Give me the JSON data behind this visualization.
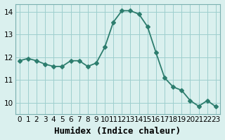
{
  "x": [
    0,
    1,
    2,
    3,
    4,
    5,
    6,
    7,
    8,
    9,
    10,
    11,
    12,
    13,
    14,
    15,
    16,
    17,
    18,
    19,
    20,
    21,
    22,
    23
  ],
  "y": [
    11.85,
    11.95,
    11.85,
    11.7,
    11.6,
    11.6,
    11.85,
    11.85,
    11.6,
    11.75,
    12.45,
    13.55,
    14.05,
    14.05,
    13.9,
    13.35,
    12.2,
    11.1,
    10.7,
    10.55,
    10.1,
    9.85,
    10.1,
    9.83
  ],
  "line_color": "#2d7d6e",
  "marker": "D",
  "markersize": 3,
  "linewidth": 1.3,
  "bg_color": "#daf0ee",
  "grid_color": "#9ecece",
  "xlabel": "Humidex (Indice chaleur)",
  "xlabel_fontsize": 9,
  "xlabel_fontweight": "bold",
  "ylabel_ticks": [
    10,
    11,
    12,
    13,
    14
  ],
  "xlim": [
    -0.5,
    23.5
  ],
  "ylim": [
    9.5,
    14.35
  ],
  "xticks": [
    0,
    1,
    2,
    3,
    4,
    5,
    6,
    7,
    8,
    9,
    10,
    11,
    12,
    13,
    14,
    15,
    16,
    17,
    18,
    19,
    20,
    21,
    22,
    23
  ],
  "tick_fontsize": 7.5
}
